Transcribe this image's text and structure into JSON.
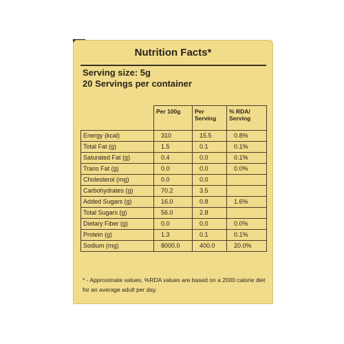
{
  "title": "Nutrition Facts*",
  "serving_size": "Serving size: 5g",
  "servings_per_container": "20 Servings per container",
  "columns": {
    "per_100g": "Per 100g",
    "per_serving": "Per Serving",
    "rda": "% RDA/ Serving"
  },
  "rows": [
    {
      "name": "Energy (kcal)",
      "per_100g": "310",
      "per_serving": "15.5",
      "rda": "0.8%"
    },
    {
      "name": "Total Fat (g)",
      "per_100g": "1.5",
      "per_serving": "0.1",
      "rda": "0.1%"
    },
    {
      "name": "Saturated Fat (g)",
      "per_100g": "0.4",
      "per_serving": "0.0",
      "rda": "0.1%"
    },
    {
      "name": "Trans Fat (g)",
      "per_100g": "0.0",
      "per_serving": "0.0",
      "rda": "0.0%"
    },
    {
      "name": "Cholesterol (mg)",
      "per_100g": "0.0",
      "per_serving": "0.0",
      "rda": ""
    },
    {
      "name": "Carbohydrates (g)",
      "per_100g": "70.2",
      "per_serving": "3.5",
      "rda": ""
    },
    {
      "name": "Added Sugars (g)",
      "per_100g": "16.0",
      "per_serving": "0.8",
      "rda": "1.6%"
    },
    {
      "name": "Total Sugars (g)",
      "per_100g": "56.0",
      "per_serving": "2.8",
      "rda": ""
    },
    {
      "name": "Dietary Fiber (g)",
      "per_100g": "0.0",
      "per_serving": "0.0",
      "rda": "0.0%"
    },
    {
      "name": "Protein (g)",
      "per_100g": "1.3",
      "per_serving": "0.1",
      "rda": "0.1%"
    },
    {
      "name": "Sodium (mg)",
      "per_100g": "8000.0",
      "per_serving": "400.0",
      "rda": "20.0%"
    }
  ],
  "footnote": "* - Approximate values, %RDA values are based on a 2000 calorie diet for an average adult per day."
}
